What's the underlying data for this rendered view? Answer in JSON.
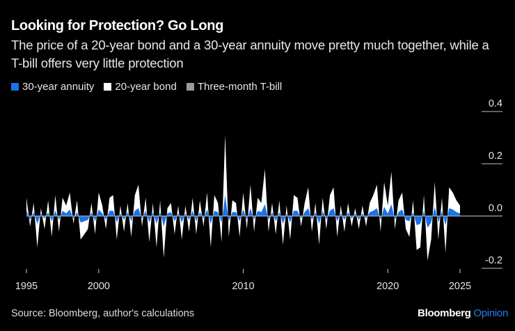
{
  "header": {
    "title": "Looking for Protection? Go Long",
    "subtitle": "The price of a 20-year bond and a 30-year annuity move pretty much together, while a T-bill offers very little protection"
  },
  "legend": [
    {
      "label": "30-year annuity",
      "color": "#1a73e8"
    },
    {
      "label": "20-year bond",
      "color": "#ffffff"
    },
    {
      "label": "Three-month T-bill",
      "color": "#9a9a9a"
    }
  ],
  "footer": {
    "source": "Source: Bloomberg, author's calculations",
    "brand_main": "Bloomberg",
    "brand_accent": "Opinion"
  },
  "chart_data": {
    "type": "area",
    "title": "Looking for Protection? Go Long",
    "xlabel": "",
    "ylabel": "",
    "xlim": [
      1995,
      2025.2
    ],
    "ylim": [
      -0.2,
      0.4
    ],
    "y_ticks": [
      0.4,
      0.2,
      0.0,
      -0.2
    ],
    "y_tick_labels": [
      "0.4",
      "0.2",
      "0.0",
      "-0.2"
    ],
    "x_ticks": [
      1995,
      2000,
      2010,
      2020,
      2025
    ],
    "x_tick_labels": [
      "1995",
      "2000",
      "2010",
      "2020",
      "2025"
    ],
    "grid": false,
    "legend_position": "top-left",
    "x": [
      1995.0,
      1995.25,
      1995.5,
      1995.75,
      1996.0,
      1996.25,
      1996.5,
      1996.75,
      1997.0,
      1997.25,
      1997.5,
      1997.75,
      1998.0,
      1998.25,
      1998.5,
      1998.75,
      1999.0,
      1999.25,
      1999.5,
      1999.75,
      2000.0,
      2000.25,
      2000.5,
      2000.75,
      2001.0,
      2001.25,
      2001.5,
      2001.75,
      2002.0,
      2002.25,
      2002.5,
      2002.75,
      2003.0,
      2003.25,
      2003.5,
      2003.75,
      2004.0,
      2004.25,
      2004.5,
      2004.75,
      2005.0,
      2005.25,
      2005.5,
      2005.75,
      2006.0,
      2006.25,
      2006.5,
      2006.75,
      2007.0,
      2007.25,
      2007.5,
      2007.75,
      2008.0,
      2008.25,
      2008.5,
      2008.75,
      2009.0,
      2009.25,
      2009.5,
      2009.75,
      2010.0,
      2010.25,
      2010.5,
      2010.75,
      2011.0,
      2011.25,
      2011.5,
      2011.75,
      2012.0,
      2012.25,
      2012.5,
      2012.75,
      2013.0,
      2013.25,
      2013.5,
      2013.75,
      2014.0,
      2014.25,
      2014.5,
      2014.75,
      2015.0,
      2015.25,
      2015.5,
      2015.75,
      2016.0,
      2016.25,
      2016.5,
      2016.75,
      2017.0,
      2017.25,
      2017.5,
      2017.75,
      2018.0,
      2018.25,
      2018.5,
      2018.75,
      2019.0,
      2019.25,
      2019.5,
      2019.75,
      2020.0,
      2020.25,
      2020.5,
      2020.75,
      2021.0,
      2021.25,
      2021.5,
      2021.75,
      2022.0,
      2022.25,
      2022.5,
      2022.75,
      2023.0,
      2023.25,
      2023.5,
      2023.75,
      2024.0,
      2024.25,
      2024.5,
      2024.75,
      2025.0
    ],
    "series": [
      {
        "name": "20-year bond",
        "color": "#ffffff",
        "values": [
          0.07,
          -0.04,
          0.05,
          -0.12,
          0.03,
          -0.05,
          0.06,
          -0.08,
          0.08,
          -0.06,
          0.07,
          0.04,
          0.09,
          -0.03,
          0.06,
          -0.09,
          -0.07,
          -0.05,
          0.05,
          -0.07,
          0.09,
          0.04,
          -0.05,
          0.07,
          0.08,
          -0.09,
          0.04,
          -0.06,
          0.05,
          -0.08,
          0.08,
          0.12,
          -0.04,
          0.07,
          -0.1,
          0.05,
          -0.12,
          0.06,
          -0.16,
          0.03,
          0.05,
          -0.07,
          0.04,
          -0.09,
          0.04,
          -0.06,
          0.07,
          -0.07,
          0.06,
          -0.04,
          0.09,
          -0.12,
          0.08,
          0.05,
          -0.1,
          0.31,
          -0.08,
          0.06,
          0.05,
          -0.08,
          0.09,
          -0.05,
          0.12,
          -0.06,
          0.07,
          0.05,
          0.18,
          -0.06,
          0.05,
          -0.07,
          0.06,
          -0.11,
          0.04,
          -0.09,
          0.08,
          0.07,
          -0.04,
          0.05,
          0.11,
          -0.06,
          0.05,
          -0.11,
          0.07,
          -0.05,
          0.08,
          0.11,
          -0.08,
          0.04,
          -0.06,
          0.05,
          -0.04,
          0.03,
          -0.05,
          0.04,
          -0.04,
          0.05,
          0.08,
          0.12,
          -0.06,
          0.13,
          0.04,
          0.17,
          -0.05,
          0.06,
          0.09,
          -0.05,
          -0.08,
          0.06,
          -0.13,
          -0.12,
          0.08,
          -0.17,
          -0.09,
          0.13,
          -0.09,
          0.07,
          -0.14,
          0.11,
          0.09,
          0.06,
          0.04
        ]
      },
      {
        "name": "30-year annuity",
        "color": "#1a73e8",
        "values": [
          0.02,
          -0.015,
          0.015,
          -0.03,
          0.01,
          -0.01,
          0.015,
          -0.02,
          0.02,
          -0.015,
          0.02,
          0.01,
          0.025,
          -0.01,
          0.015,
          -0.025,
          -0.02,
          -0.015,
          0.015,
          -0.02,
          0.025,
          0.01,
          -0.015,
          0.02,
          0.02,
          -0.025,
          0.01,
          -0.015,
          0.015,
          -0.02,
          0.02,
          0.03,
          -0.01,
          0.02,
          -0.025,
          0.015,
          -0.03,
          0.015,
          -0.04,
          0.01,
          0.015,
          -0.02,
          0.01,
          -0.025,
          0.01,
          -0.015,
          0.02,
          -0.02,
          0.015,
          -0.01,
          0.025,
          -0.03,
          0.02,
          0.015,
          -0.025,
          0.08,
          -0.02,
          0.015,
          0.015,
          -0.02,
          0.025,
          -0.015,
          0.03,
          -0.015,
          0.02,
          0.015,
          0.045,
          -0.015,
          0.015,
          -0.02,
          0.015,
          -0.03,
          0.01,
          -0.025,
          0.02,
          0.02,
          -0.01,
          0.015,
          0.03,
          -0.015,
          0.015,
          -0.03,
          0.02,
          -0.015,
          0.02,
          0.03,
          -0.02,
          0.01,
          -0.015,
          0.015,
          -0.01,
          0.01,
          -0.015,
          0.01,
          -0.01,
          0.015,
          0.02,
          0.03,
          -0.015,
          0.035,
          0.01,
          0.045,
          -0.015,
          0.015,
          0.025,
          -0.015,
          -0.02,
          0.015,
          -0.035,
          -0.03,
          0.02,
          -0.045,
          -0.025,
          0.035,
          -0.025,
          0.02,
          -0.035,
          0.03,
          0.025,
          0.015,
          0.01
        ]
      },
      {
        "name": "Three-month T-bill",
        "color": "#9a9a9a",
        "values": [
          0.0,
          0.0,
          0.0,
          0.0,
          0.0,
          0.0,
          0.0,
          0.0,
          0.0,
          0.0,
          0.0,
          0.0,
          0.0,
          0.0,
          0.0,
          0.0,
          0.0,
          0.0,
          0.0,
          0.0,
          0.0,
          0.0,
          0.0,
          0.0,
          0.0,
          0.0,
          0.0,
          0.0,
          0.0,
          0.0,
          0.0,
          0.0,
          0.0,
          0.0,
          0.0,
          0.0,
          0.0,
          0.0,
          0.0,
          0.0,
          0.0,
          0.0,
          0.0,
          0.0,
          0.0,
          0.0,
          0.0,
          0.0,
          0.0,
          0.0,
          0.0,
          0.0,
          0.0,
          0.0,
          0.0,
          0.0,
          0.0,
          0.0,
          0.0,
          0.0,
          0.0,
          0.0,
          0.0,
          0.0,
          0.0,
          0.0,
          0.0,
          0.0,
          0.0,
          0.0,
          0.0,
          0.0,
          0.0,
          0.0,
          0.0,
          0.0,
          0.0,
          0.0,
          0.0,
          0.0,
          0.0,
          0.0,
          0.0,
          0.0,
          0.0,
          0.0,
          0.0,
          0.0,
          0.0,
          0.0,
          0.0,
          0.0,
          0.0,
          0.0,
          0.0,
          0.0,
          0.0,
          0.0,
          0.0,
          0.0,
          0.0,
          0.0,
          0.0,
          0.0,
          0.0,
          0.0,
          0.0,
          0.0,
          0.0,
          0.0,
          0.0,
          0.0,
          0.0,
          0.0,
          0.0,
          0.0,
          0.0,
          0.0,
          0.0,
          0.0,
          0.0
        ]
      }
    ]
  }
}
